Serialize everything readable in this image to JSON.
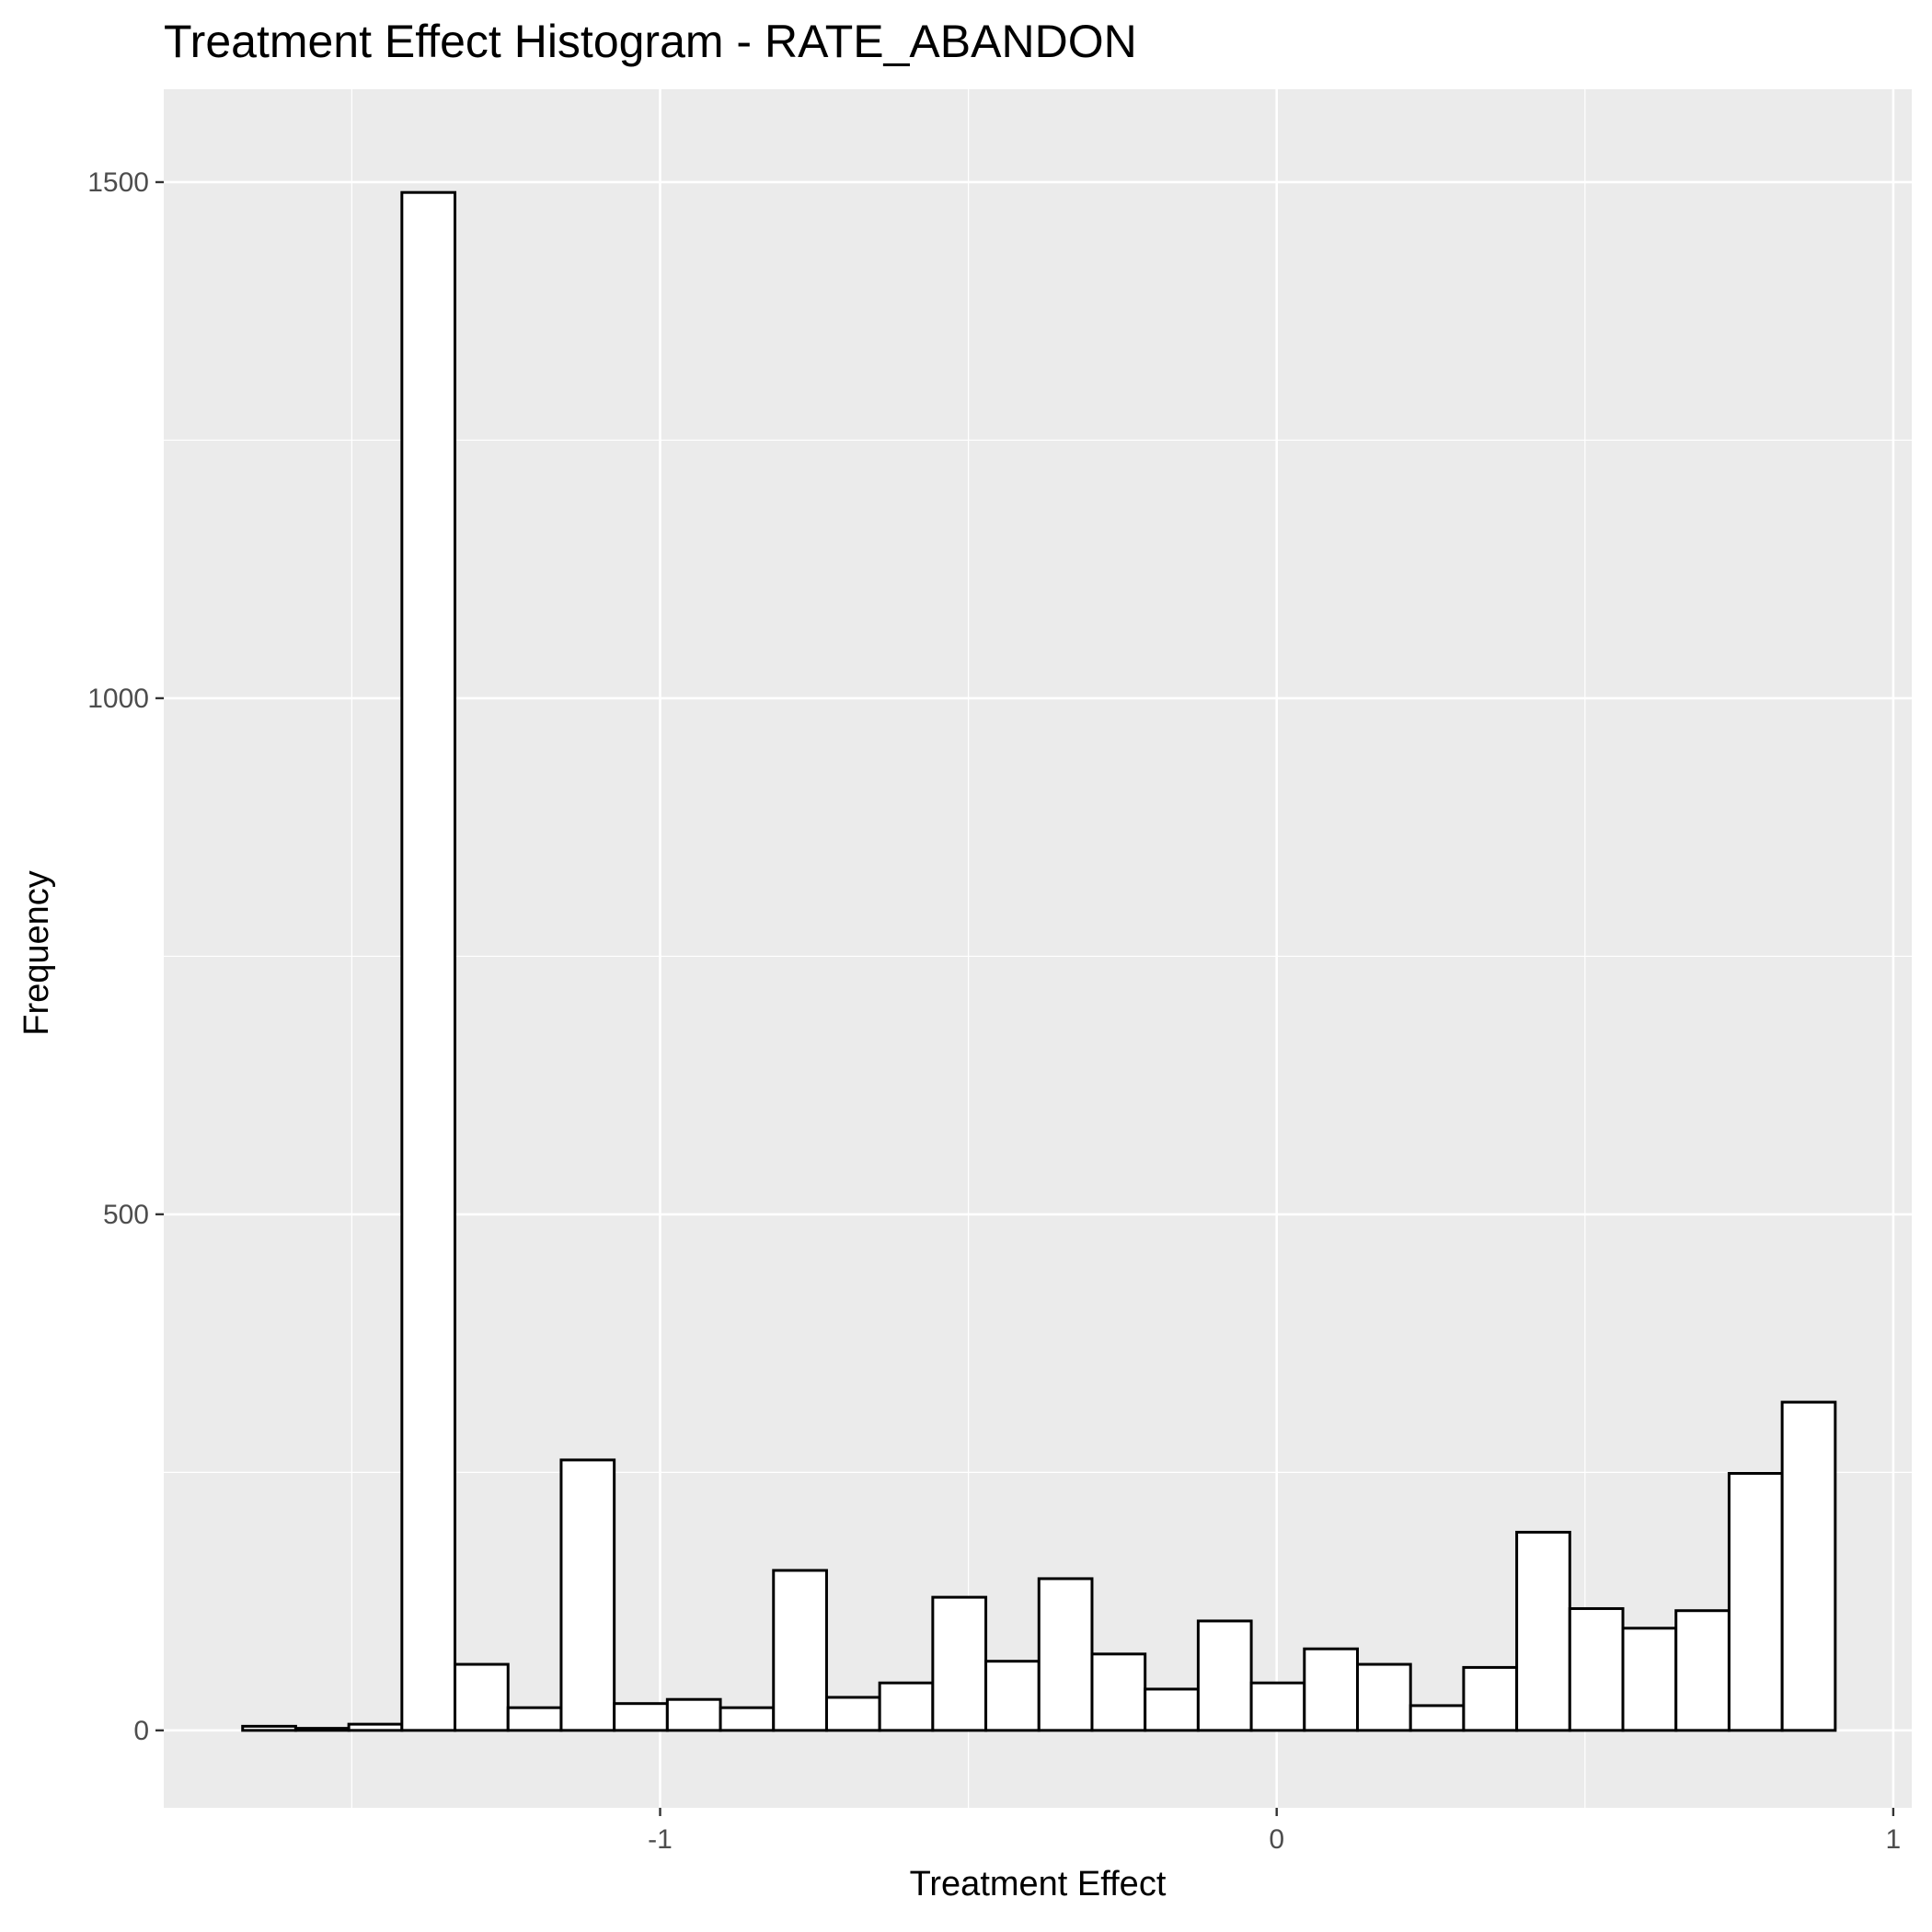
{
  "chart_data": {
    "type": "bar",
    "title": "Treatment Effect Histogram -  RATE_ABANDON",
    "xlabel": "Treatment Effect",
    "ylabel": "Frequency",
    "xlim": [
      -1.805,
      1.03
    ],
    "ylim": [
      -75,
      1590
    ],
    "x_ticks": [
      -1,
      0,
      1
    ],
    "x_tick_labels": [
      "-1",
      "0",
      "1"
    ],
    "y_ticks": [
      0,
      500,
      1000,
      1500
    ],
    "y_tick_labels": [
      "0",
      "500",
      "1000",
      "1500"
    ],
    "grid": true,
    "legend": "none",
    "bin_width": 0.0861,
    "bin_edges": [
      -1.6771,
      -1.591,
      -1.5049,
      -1.4188,
      -1.3327,
      -1.2466,
      -1.1605,
      -1.0744,
      -0.9883,
      -0.9022,
      -0.8161,
      -0.73,
      -0.6439,
      -0.5578,
      -0.4717,
      -0.3856,
      -0.2995,
      -0.2134,
      -0.1273,
      -0.0412,
      0.0449,
      0.131,
      0.2171,
      0.3032,
      0.3893,
      0.4754,
      0.5615,
      0.6476,
      0.7337,
      0.8198,
      0.9059
    ],
    "values": [
      4,
      2,
      6,
      1490,
      64,
      22,
      262,
      26,
      30,
      22,
      155,
      32,
      46,
      129,
      67,
      147,
      74,
      40,
      106,
      46,
      79,
      64,
      24,
      61,
      192,
      118,
      99,
      116,
      249,
      318
    ],
    "colors": {
      "panel_background": "#ebebeb",
      "grid_major": "#ffffff",
      "bar_fill": "#ffffff",
      "bar_outline": "#000000",
      "tick_label": "#4d4d4d",
      "text": "#000000"
    }
  }
}
